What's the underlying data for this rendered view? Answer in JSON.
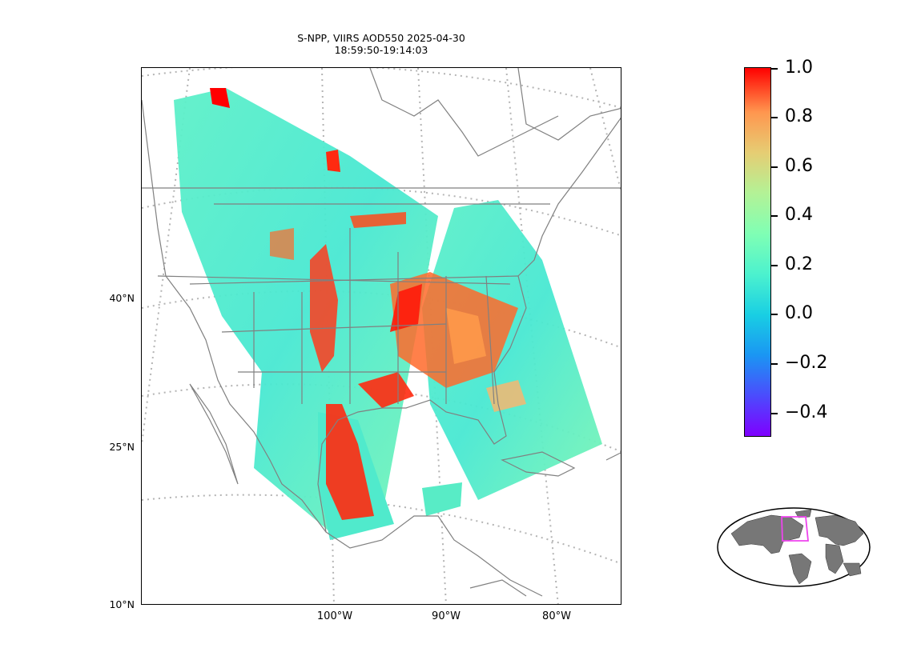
{
  "title": {
    "line1": "S-NPP, VIIRS AOD550 2025-04-30",
    "line2": "18:59:50-19:14:03"
  },
  "lat_labels": [
    "40°N",
    "25°N",
    "10°N"
  ],
  "lon_labels": [
    "100°W",
    "90°W",
    "80°W"
  ],
  "colorbar": {
    "ticks": [
      "1.0",
      "0.8",
      "0.6",
      "0.4",
      "0.2",
      "0.0",
      "−0.2",
      "−0.4"
    ],
    "range": [
      -0.5,
      1.0
    ],
    "colormap": "rainbow"
  },
  "colors": {
    "land_outline": "#808080",
    "graticule": "#b4b4b4",
    "aod_high": "#ff0000",
    "aod_low": "#4cf2ce",
    "inset_land": "#777777",
    "inset_box": "#ee44ee"
  },
  "inset": {
    "description_icon": "globe-locator-icon"
  }
}
